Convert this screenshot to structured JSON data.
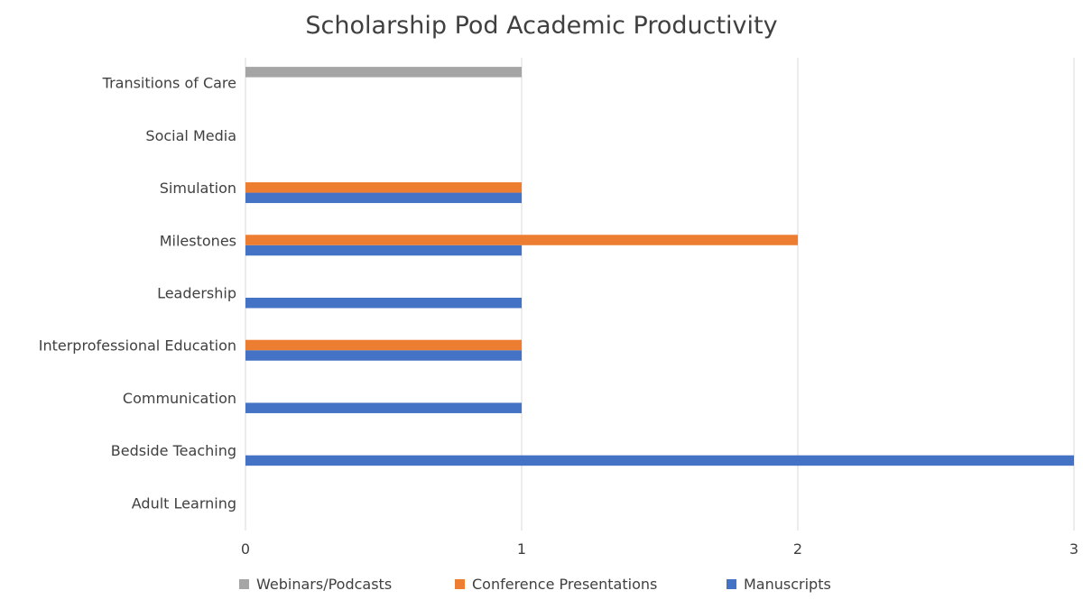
{
  "chart_data": {
    "type": "bar",
    "orientation": "horizontal",
    "title": "Scholarship Pod Academic Productivity",
    "xlabel": "",
    "ylabel": "",
    "categories": [
      "Adult Learning",
      "Bedside Teaching",
      "Communication",
      "Interprofessional Education",
      "Leadership",
      "Milestones",
      "Simulation",
      "Social Media",
      "Transitions of Care"
    ],
    "series": [
      {
        "name": "Manuscripts",
        "color": "#4472c4",
        "values": [
          0,
          3,
          1,
          1,
          1,
          1,
          1,
          0,
          0
        ]
      },
      {
        "name": "Conference Presentations",
        "color": "#ed7d31",
        "values": [
          0,
          0,
          0,
          1,
          0,
          2,
          1,
          0,
          0
        ]
      },
      {
        "name": "Webinars/Podcasts",
        "color": "#a5a5a5",
        "values": [
          0,
          0,
          0,
          0,
          0,
          0,
          0,
          0,
          1
        ]
      }
    ],
    "xlim": [
      0,
      3
    ],
    "xticks": [
      "0",
      "1",
      "2",
      "3"
    ],
    "grid": true,
    "legend_position": "bottom",
    "legend_order": [
      "Webinars/Podcasts",
      "Conference Presentations",
      "Manuscripts"
    ]
  }
}
